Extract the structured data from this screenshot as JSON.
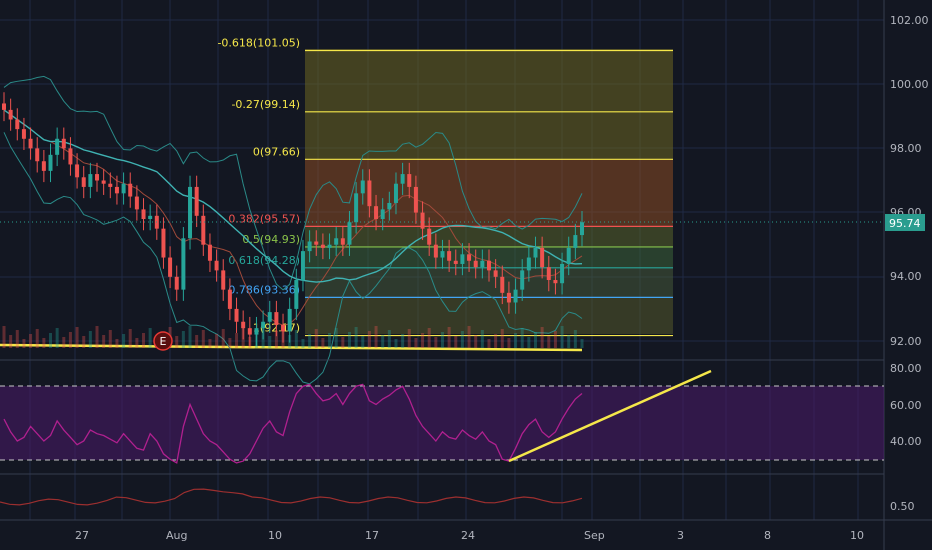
{
  "colors": {
    "background": "#131722",
    "grid": "#1f2a44",
    "axis_text": "#b2b5be",
    "up_candle": "#26a69a",
    "down_candle": "#ef5350",
    "bollinger": "#2a8a88",
    "ema": "#3fb2b2",
    "fib_line": "#f5e74a",
    "fib_0_382": "#ef5350",
    "fib_0_5": "#8bc34a",
    "fib_0_618": "#26a69a",
    "fib_0_786": "#42a5f5",
    "current_price": "#2a9d8f",
    "rsi_line": "#b0208f",
    "rsi_band": "#7b1fa2",
    "trend_line": "#f5e74a",
    "lower_indicator": "#9c2f2f"
  },
  "price_axis": {
    "labels": [
      "102.00",
      "100.00",
      "98.00",
      "96.00",
      "94.00",
      "92.00"
    ],
    "current_price": "95.74"
  },
  "rsi_axis": {
    "labels": [
      "80.00",
      "60.00",
      "40.00"
    ]
  },
  "lower_axis": {
    "labels": [
      "0.50"
    ]
  },
  "time_axis": {
    "labels": [
      "27",
      "Aug",
      "10",
      "17",
      "24",
      "Sep",
      "3",
      "8",
      "10"
    ]
  },
  "fib_levels": [
    {
      "label": "-0.618(101.05)",
      "value": 101.05,
      "color_key": "fib_line"
    },
    {
      "label": "-0.27(99.14)",
      "value": 99.14,
      "color_key": "fib_line"
    },
    {
      "label": "0(97.66)",
      "value": 97.66,
      "color_key": "fib_line"
    },
    {
      "label": "0.382(95.57)",
      "value": 95.57,
      "color_key": "fib_0_382"
    },
    {
      "label": "0.5(94.93)",
      "value": 94.93,
      "color_key": "fib_0_5"
    },
    {
      "label": "0.618(94.28)",
      "value": 94.28,
      "color_key": "fib_0_618"
    },
    {
      "label": "0.786(93.36)",
      "value": 93.36,
      "color_key": "fib_0_786"
    },
    {
      "label": "1(92.17)",
      "value": 92.17,
      "color_key": "fib_line"
    }
  ],
  "events": {
    "earnings_marker": "E"
  },
  "chart_data": {
    "type": "candlestick",
    "price_range": [
      91.6,
      103.0
    ],
    "rsi_range": [
      25,
      85
    ],
    "rsi_levels": [
      70,
      30
    ],
    "candles_close": [
      99.2,
      98.9,
      98.6,
      98.3,
      98.0,
      97.6,
      97.3,
      97.8,
      98.3,
      98.0,
      97.5,
      97.1,
      96.8,
      97.2,
      97.0,
      96.9,
      96.8,
      96.6,
      96.9,
      96.5,
      96.1,
      95.8,
      95.9,
      95.5,
      94.6,
      94.0,
      93.6,
      95.2,
      96.8,
      95.9,
      95.0,
      94.5,
      94.2,
      93.6,
      93.0,
      92.6,
      92.4,
      92.2,
      92.4,
      92.6,
      92.9,
      92.5,
      92.3,
      93.0,
      93.9,
      94.8,
      95.1,
      95.0,
      94.9,
      95.0,
      95.2,
      95.0,
      95.7,
      96.6,
      97.0,
      96.2,
      95.8,
      96.1,
      96.3,
      96.9,
      97.2,
      96.8,
      96.0,
      95.5,
      95.0,
      94.6,
      94.8,
      94.5,
      94.4,
      94.7,
      94.5,
      94.3,
      94.5,
      94.2,
      94.0,
      93.5,
      93.2,
      93.6,
      94.2,
      94.6,
      94.9,
      94.3,
      93.9,
      93.8,
      94.4,
      94.9,
      95.3,
      95.7
    ],
    "rsi_values": [
      52,
      45,
      40,
      42,
      48,
      44,
      40,
      43,
      51,
      46,
      42,
      38,
      40,
      46,
      44,
      43,
      41,
      39,
      44,
      40,
      36,
      35,
      44,
      40,
      33,
      30,
      28,
      48,
      60,
      52,
      44,
      40,
      38,
      34,
      30,
      28,
      29,
      33,
      40,
      47,
      51,
      45,
      43,
      56,
      66,
      70,
      71,
      66,
      62,
      63,
      66,
      60,
      66,
      70,
      71,
      62,
      60,
      63,
      65,
      68,
      70,
      63,
      54,
      48,
      44,
      40,
      45,
      42,
      41,
      46,
      43,
      41,
      45,
      40,
      38,
      30,
      29,
      36,
      44,
      49,
      52,
      45,
      42,
      45,
      52,
      58,
      63,
      66
    ]
  }
}
